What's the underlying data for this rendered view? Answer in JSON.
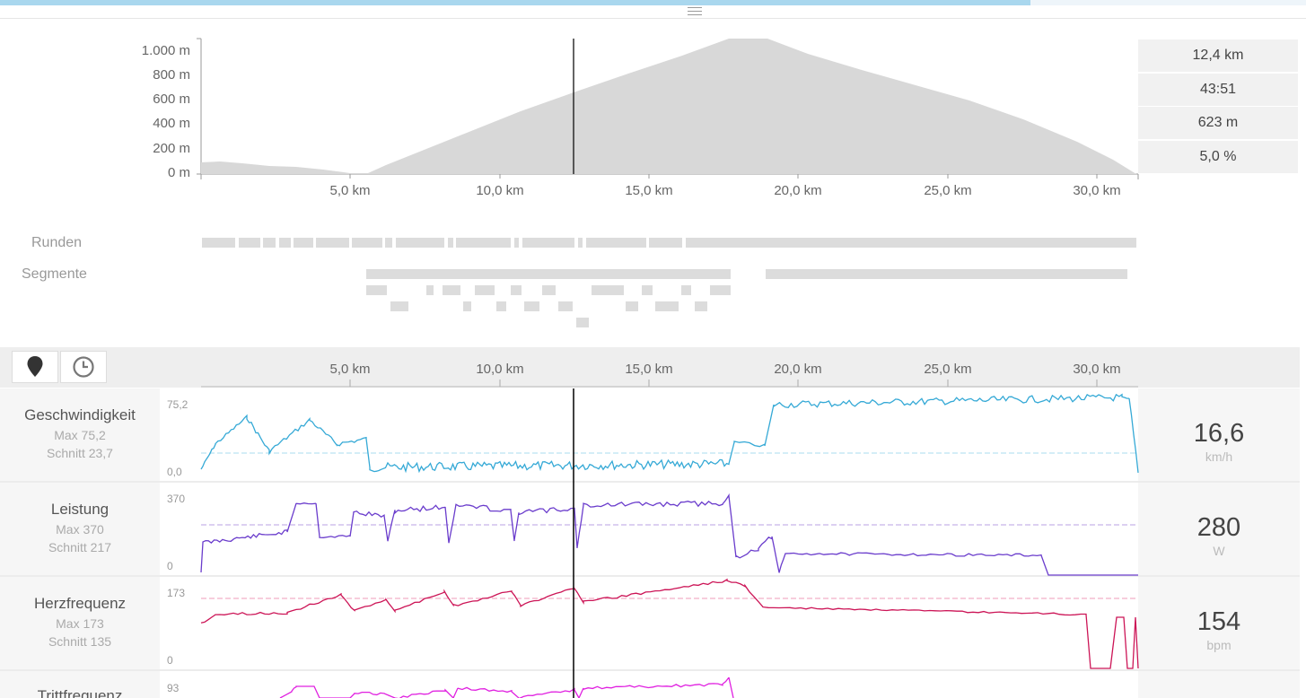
{
  "elevation": {
    "y_ticks": [
      "1.000 m",
      "800 m",
      "600 m",
      "400 m",
      "200 m",
      "0 m"
    ],
    "x_ticks": [
      "5,0 km",
      "10,0 km",
      "15,0 km",
      "20,0 km",
      "25,0 km",
      "30,0 km"
    ],
    "fill_color": "#d8d8d8",
    "cursor_km": 12.4
  },
  "stats": [
    "12,4 km",
    "43:51",
    "623 m",
    "5,0 %"
  ],
  "laps_label": "Runden",
  "segments_label": "Segmente",
  "toolbar": {
    "distance_icon": "map-pin-icon",
    "time_icon": "clock-icon",
    "x_ticks": [
      "5,0 km",
      "10,0 km",
      "15,0 km",
      "20,0 km",
      "25,0 km",
      "30,0 km"
    ]
  },
  "metrics": [
    {
      "name": "Geschwindigkeit",
      "max": "Max 75,2",
      "avg": "Schnitt 23,7",
      "axis_max": "75,2",
      "axis_min": "0,0",
      "value": "16,6",
      "unit": "km/h",
      "color": "#35a9d6",
      "avg_color": "#a9dcef"
    },
    {
      "name": "Leistung",
      "max": "Max 370",
      "avg": "Schnitt 217",
      "axis_max": "370",
      "axis_min": "0",
      "value": "280",
      "unit": "W",
      "color": "#6a3ccc",
      "avg_color": "#b8a2e3"
    },
    {
      "name": "Herzfrequenz",
      "max": "Max 173",
      "avg": "Schnitt 135",
      "axis_max": "173",
      "axis_min": "0",
      "value": "154",
      "unit": "bpm",
      "color": "#cc1456",
      "avg_color": "#ef9bb8"
    },
    {
      "name": "Trittfrequenz",
      "axis_max": "93",
      "color": "#e020e0"
    }
  ]
}
